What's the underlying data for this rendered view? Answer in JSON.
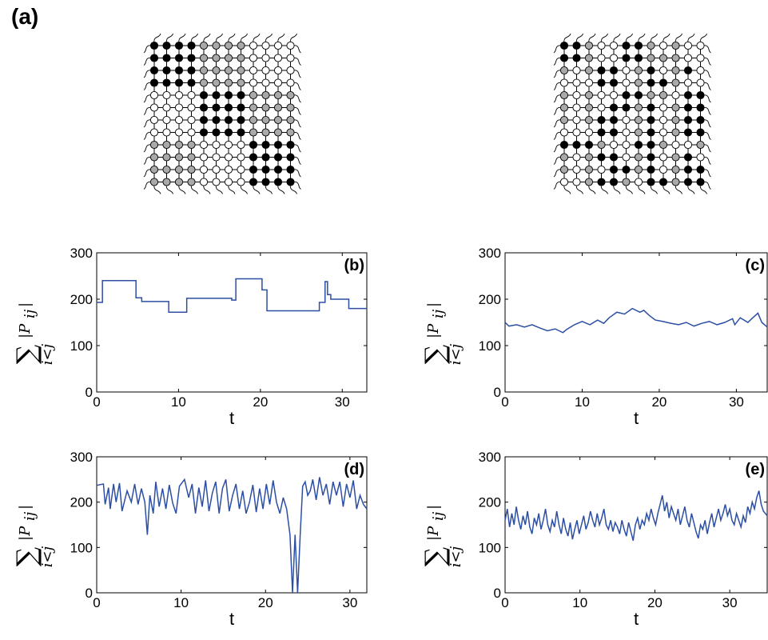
{
  "figure": {
    "label_a": "(a)"
  },
  "lattices": [
    {
      "rows": [
        "BBBBGGGGWWWW",
        "BBBBGGGGWWWW",
        "BBBBGGGGWWWW",
        "BBBBGGGGWWWW",
        "WWWWBBBBGGGG",
        "WWWWBBBBGGGG",
        "WWWWBBBBGGGG",
        "WWWWBBBBGGGG",
        "GGGGWWWWBBBB",
        "GGGGWWWWBBBB",
        "GGGGWWWWBBBB",
        "GGGGWWWWBBBB"
      ]
    },
    {
      "rows": [
        "BBGWWBBGWGWW",
        "BBGWWBBGGGWW",
        "GWGBBWGBWGBW",
        "WWWBBWGBBGWW",
        "GWGWWBBGGWBB",
        "GWGWBBGBWGBB",
        "GWGBBWGBWGBB",
        "WWWBBWGBWGBB",
        "BBBGWWBBGWWG",
        "GWGBBWGBWGBW",
        "GWGWBBGBWGBB",
        "WWGBBGWBBGBB"
      ]
    }
  ],
  "colors": {
    "series_line": "#2c4fa3",
    "node_black": "#000000",
    "node_gray": "#a9a9a9",
    "node_white": "#ffffff",
    "axis": "#000000"
  },
  "chart_data": [
    {
      "type": "line",
      "panel_label": "(b)",
      "xlabel": "t",
      "ylabel_sum": "∑",
      "ylabel_sub": "i<j",
      "ylabel_term": "|P",
      "ylabel_term_sub": "ij",
      "ylabel_term_end": "|",
      "xlim": [
        0,
        33
      ],
      "ylim": [
        0,
        300
      ],
      "xticks": [
        0,
        10,
        20,
        30
      ],
      "yticks": [
        0,
        100,
        200,
        300
      ],
      "x": [
        0,
        0.7,
        0.7,
        4.8,
        4.8,
        5.5,
        5.5,
        8.8,
        8.8,
        11.0,
        11.0,
        16.5,
        16.5,
        17.0,
        17.0,
        20.2,
        20.2,
        20.8,
        20.8,
        27.2,
        27.2,
        27.9,
        27.9,
        28.2,
        28.2,
        28.6,
        28.6,
        30.8,
        30.8,
        33
      ],
      "y": [
        193,
        193,
        240,
        240,
        203,
        203,
        195,
        195,
        172,
        172,
        202,
        202,
        198,
        198,
        244,
        244,
        220,
        220,
        175,
        175,
        193,
        193,
        238,
        238,
        210,
        210,
        200,
        200,
        180,
        180
      ]
    },
    {
      "type": "line",
      "panel_label": "(c)",
      "xlabel": "t",
      "ylabel_sum": "∑",
      "ylabel_sub": "i<j",
      "ylabel_term": "|P",
      "ylabel_term_sub": "ij",
      "ylabel_term_end": "|",
      "xlim": [
        0,
        34
      ],
      "ylim": [
        0,
        300
      ],
      "xticks": [
        0,
        10,
        20,
        30
      ],
      "yticks": [
        0,
        100,
        200,
        300
      ],
      "x": [
        0,
        0.5,
        1.5,
        2.5,
        3.5,
        4.5,
        5.5,
        6.5,
        7.5,
        8.0,
        9.0,
        10.0,
        11.0,
        12.0,
        12.8,
        13.5,
        14.5,
        15.5,
        16.5,
        17.5,
        18.0,
        18.7,
        19.5,
        20.5,
        21.5,
        22.5,
        23.5,
        24.5,
        25.5,
        26.5,
        27.5,
        28.5,
        29.5,
        29.8,
        30.5,
        31.5,
        32.0,
        32.8,
        33.3,
        34
      ],
      "y": [
        150,
        142,
        145,
        140,
        145,
        138,
        132,
        136,
        128,
        135,
        145,
        152,
        145,
        155,
        148,
        160,
        172,
        168,
        180,
        172,
        176,
        165,
        155,
        152,
        148,
        145,
        150,
        142,
        148,
        152,
        145,
        150,
        158,
        145,
        160,
        150,
        158,
        170,
        150,
        140
      ]
    },
    {
      "type": "line",
      "panel_label": "(d)",
      "xlabel": "t",
      "ylabel_sum": "∑",
      "ylabel_sub": "i<j",
      "ylabel_term": "|P",
      "ylabel_term_sub": "ij",
      "ylabel_term_end": "|",
      "xlim": [
        0,
        32
      ],
      "ylim": [
        0,
        300
      ],
      "xticks": [
        0,
        10,
        20,
        30
      ],
      "yticks": [
        0,
        100,
        200,
        300
      ],
      "x": [
        0,
        0.8,
        1.0,
        1.4,
        1.6,
        2.0,
        2.3,
        2.7,
        3.0,
        3.6,
        4.1,
        4.5,
        4.9,
        5.3,
        5.7,
        6.0,
        6.3,
        6.7,
        7.0,
        7.4,
        7.8,
        8.2,
        8.6,
        9.0,
        9.4,
        9.8,
        10.4,
        10.9,
        11.3,
        11.7,
        12.1,
        12.5,
        12.9,
        13.3,
        13.7,
        14.1,
        14.5,
        14.9,
        15.3,
        15.7,
        16.1,
        16.5,
        16.9,
        17.3,
        17.7,
        18.1,
        18.5,
        18.9,
        19.3,
        19.7,
        20.1,
        20.5,
        20.9,
        21.3,
        21.7,
        22.1,
        22.5,
        22.9,
        23.2,
        23.5,
        23.8,
        24.1,
        24.4,
        24.7,
        25.0,
        25.3,
        25.6,
        26.0,
        26.4,
        26.8,
        27.2,
        27.6,
        28.0,
        28.4,
        28.8,
        29.2,
        29.6,
        30.0,
        30.4,
        30.8,
        31.2,
        31.6,
        32
      ],
      "y": [
        237,
        240,
        195,
        232,
        185,
        240,
        200,
        242,
        180,
        225,
        200,
        240,
        195,
        230,
        200,
        128,
        215,
        175,
        245,
        190,
        230,
        185,
        238,
        198,
        175,
        235,
        250,
        210,
        240,
        175,
        232,
        190,
        248,
        180,
        220,
        245,
        175,
        230,
        250,
        180,
        215,
        240,
        185,
        225,
        175,
        200,
        238,
        178,
        230,
        185,
        240,
        195,
        248,
        200,
        175,
        210,
        185,
        128,
        0,
        128,
        0,
        125,
        235,
        245,
        215,
        225,
        250,
        205,
        255,
        215,
        240,
        195,
        245,
        215,
        245,
        190,
        240,
        210,
        248,
        185,
        215,
        195,
        185
      ]
    },
    {
      "type": "line",
      "panel_label": "(e)",
      "xlabel": "t",
      "ylabel_sum": "∑",
      "ylabel_sub": "i<j",
      "ylabel_term": "|P",
      "ylabel_term_sub": "ij",
      "ylabel_term_end": "|",
      "xlim": [
        0,
        35
      ],
      "ylim": [
        0,
        300
      ],
      "xticks": [
        0,
        10,
        20,
        30
      ],
      "yticks": [
        0,
        100,
        200,
        300
      ],
      "x": [
        0,
        0.3,
        0.6,
        0.9,
        1.2,
        1.5,
        1.8,
        2.1,
        2.4,
        2.7,
        3.0,
        3.3,
        3.6,
        3.9,
        4.2,
        4.5,
        4.8,
        5.1,
        5.4,
        5.7,
        6.0,
        6.3,
        6.6,
        6.9,
        7.2,
        7.5,
        7.8,
        8.1,
        8.4,
        8.7,
        9.0,
        9.3,
        9.6,
        9.9,
        10.2,
        10.5,
        10.8,
        11.1,
        11.4,
        11.7,
        12.0,
        12.3,
        12.6,
        12.9,
        13.2,
        13.5,
        13.8,
        14.1,
        14.4,
        14.7,
        15.0,
        15.3,
        15.6,
        15.9,
        16.2,
        16.5,
        16.8,
        17.1,
        17.4,
        17.7,
        18.0,
        18.3,
        18.6,
        18.9,
        19.2,
        19.5,
        19.8,
        20.1,
        20.4,
        20.7,
        21.0,
        21.3,
        21.6,
        21.9,
        22.2,
        22.5,
        22.8,
        23.1,
        23.4,
        23.7,
        24.0,
        24.3,
        24.6,
        24.9,
        25.2,
        25.5,
        25.8,
        26.1,
        26.4,
        26.7,
        27.0,
        27.3,
        27.6,
        27.9,
        28.2,
        28.5,
        28.8,
        29.1,
        29.4,
        29.7,
        30.0,
        30.3,
        30.6,
        30.9,
        31.2,
        31.5,
        31.8,
        32.1,
        32.4,
        32.7,
        33.0,
        33.3,
        33.6,
        33.9,
        34.2,
        34.5,
        35
      ],
      "y": [
        160,
        185,
        145,
        175,
        150,
        190,
        160,
        140,
        170,
        150,
        180,
        145,
        130,
        165,
        150,
        175,
        140,
        160,
        185,
        150,
        135,
        160,
        145,
        180,
        150,
        130,
        165,
        140,
        125,
        155,
        118,
        140,
        160,
        130,
        150,
        170,
        140,
        155,
        180,
        160,
        145,
        175,
        150,
        165,
        185,
        150,
        140,
        160,
        135,
        155,
        145,
        130,
        160,
        140,
        125,
        155,
        135,
        115,
        150,
        165,
        140,
        160,
        150,
        175,
        160,
        185,
        165,
        150,
        175,
        195,
        215,
        180,
        200,
        165,
        190,
        175,
        160,
        185,
        150,
        170,
        190,
        160,
        145,
        175,
        155,
        135,
        120,
        150,
        140,
        160,
        130,
        155,
        175,
        145,
        165,
        185,
        160,
        175,
        195,
        170,
        185,
        160,
        150,
        175,
        160,
        145,
        170,
        155,
        190,
        175,
        200,
        185,
        210,
        225,
        195,
        180,
        170
      ]
    }
  ]
}
